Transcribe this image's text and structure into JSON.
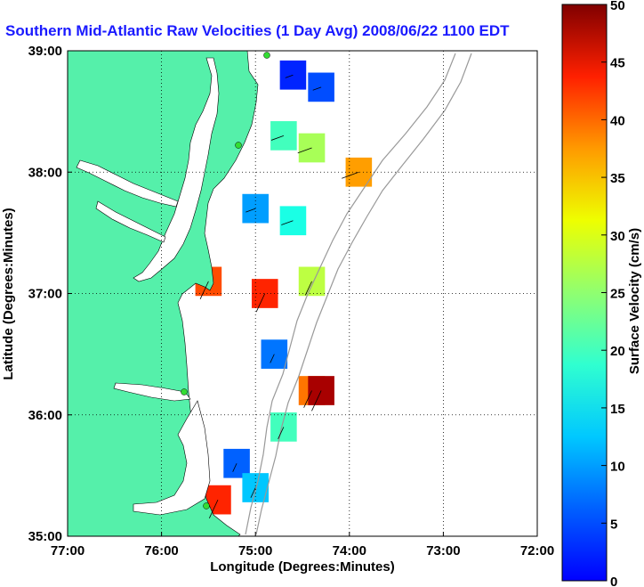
{
  "chart_data": {
    "type": "heatmap",
    "title": "Southern Mid-Atlantic Raw Velocities (1 Day Avg) 2008/06/22 1100 EDT",
    "xlabel": "Longitude (Degrees:Minutes)",
    "ylabel": "Latitude (Degrees:Minutes)",
    "colorbar_label": "Surface Velocity (cm/s)",
    "x_ticks": [
      "77:00",
      "76:00",
      "75:00",
      "74:00",
      "73:00",
      "72:00"
    ],
    "y_ticks": [
      "39:00",
      "38:00",
      "37:00",
      "36:00",
      "35:00"
    ],
    "colorbar_ticks": [
      "50",
      "45",
      "40",
      "35",
      "30",
      "25",
      "20",
      "15",
      "10",
      "5",
      "0"
    ],
    "xlim": [
      -77,
      -72
    ],
    "ylim": [
      35,
      39
    ],
    "clim": [
      0,
      50
    ],
    "grid": true,
    "land_color": "#55f0aa",
    "colormap": "jet",
    "sample_cells": [
      {
        "lon": -74.6,
        "lat": 38.8,
        "speed": 8
      },
      {
        "lon": -74.3,
        "lat": 38.7,
        "speed": 10
      },
      {
        "lon": -74.7,
        "lat": 38.3,
        "speed": 22
      },
      {
        "lon": -74.4,
        "lat": 38.2,
        "speed": 27
      },
      {
        "lon": -73.9,
        "lat": 38.0,
        "speed": 36
      },
      {
        "lon": -75.0,
        "lat": 37.7,
        "speed": 14
      },
      {
        "lon": -74.6,
        "lat": 37.6,
        "speed": 20
      },
      {
        "lon": -75.5,
        "lat": 37.1,
        "speed": 40
      },
      {
        "lon": -74.9,
        "lat": 37.0,
        "speed": 42
      },
      {
        "lon": -74.4,
        "lat": 37.1,
        "speed": 28
      },
      {
        "lon": -74.8,
        "lat": 36.5,
        "speed": 12
      },
      {
        "lon": -74.4,
        "lat": 36.2,
        "speed": 38
      },
      {
        "lon": -74.3,
        "lat": 36.2,
        "speed": 48
      },
      {
        "lon": -74.7,
        "lat": 35.9,
        "speed": 22
      },
      {
        "lon": -75.2,
        "lat": 35.6,
        "speed": 11
      },
      {
        "lon": -75.0,
        "lat": 35.4,
        "speed": 16
      },
      {
        "lon": -75.4,
        "lat": 35.3,
        "speed": 42
      }
    ]
  }
}
